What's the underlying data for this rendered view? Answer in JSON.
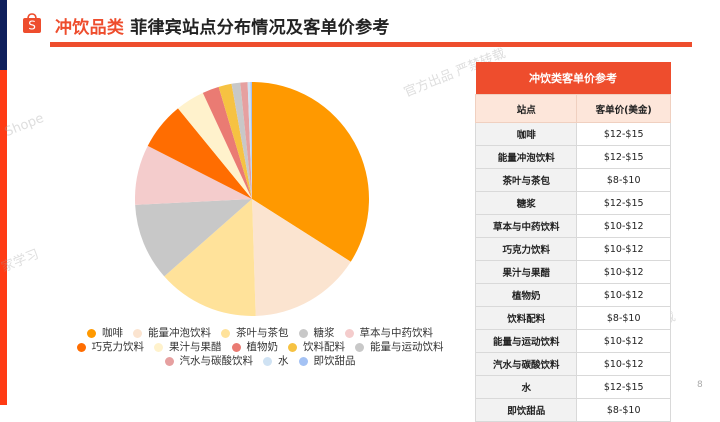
{
  "header": {
    "accent_title": "冲饮品类",
    "title": "菲律宾站点分布情况及客单价参考",
    "logo_letter": "S"
  },
  "watermarks": [
    "Shope",
    "官方出品 严禁转载",
    "家学习",
    "中心官方出品 严禁转载",
    "Sho"
  ],
  "colors": {
    "brand": "#ee4d2d",
    "navy": "#0f1f5c",
    "side_red": "#ff3b14"
  },
  "chart_data": {
    "type": "pie",
    "title": "",
    "start_angle": 0,
    "direction": "clockwise",
    "legend_position": "bottom",
    "categories": [
      "咖啡",
      "能量冲泡饮料",
      "茶叶与茶包",
      "糖浆",
      "草本与中药饮料",
      "巧克力饮料",
      "果汁与果醋",
      "植物奶",
      "饮料配料",
      "能量与运动饮料",
      "汽水与碳酸饮料",
      "水",
      "即饮甜品"
    ],
    "values": [
      34.0,
      15.5,
      14.0,
      10.7,
      8.3,
      6.6,
      4.0,
      2.3,
      1.8,
      1.2,
      1.0,
      0.4,
      0.2
    ],
    "colors": [
      "#ff9900",
      "#fbe4d0",
      "#ffe29a",
      "#c8c8c8",
      "#f4cccc",
      "#ff6d01",
      "#fff2cc",
      "#ea7b73",
      "#f6c242",
      "#c8c8c8",
      "#e6a0a0",
      "#cfe2f3",
      "#a4c2f4"
    ]
  },
  "legend": {
    "rows": [
      [
        0,
        1,
        2,
        3,
        4
      ],
      [
        5,
        6,
        7,
        8,
        9
      ],
      [
        10,
        11,
        12
      ]
    ]
  },
  "table": {
    "title": "冲饮类客单价参考",
    "columns": [
      "站点",
      "客单价(美金)"
    ],
    "rows": [
      {
        "name": "咖啡",
        "price": "$12-$15"
      },
      {
        "name": "能量冲泡饮料",
        "price": "$12-$15"
      },
      {
        "name": "茶叶与茶包",
        "price": "$8-$10"
      },
      {
        "name": "糖浆",
        "price": "$12-$15"
      },
      {
        "name": "草本与中药饮料",
        "price": "$10-$12"
      },
      {
        "name": "巧克力饮料",
        "price": "$10-$12"
      },
      {
        "name": "果汁与果醋",
        "price": "$10-$12"
      },
      {
        "name": "植物奶",
        "price": "$10-$12"
      },
      {
        "name": "饮料配料",
        "price": "$8-$10"
      },
      {
        "name": "能量与运动饮料",
        "price": "$10-$12"
      },
      {
        "name": "汽水与碳酸饮料",
        "price": "$10-$12"
      },
      {
        "name": "水",
        "price": "$12-$15"
      },
      {
        "name": "即饮甜品",
        "price": "$8-$10"
      }
    ]
  },
  "page_number": "8"
}
